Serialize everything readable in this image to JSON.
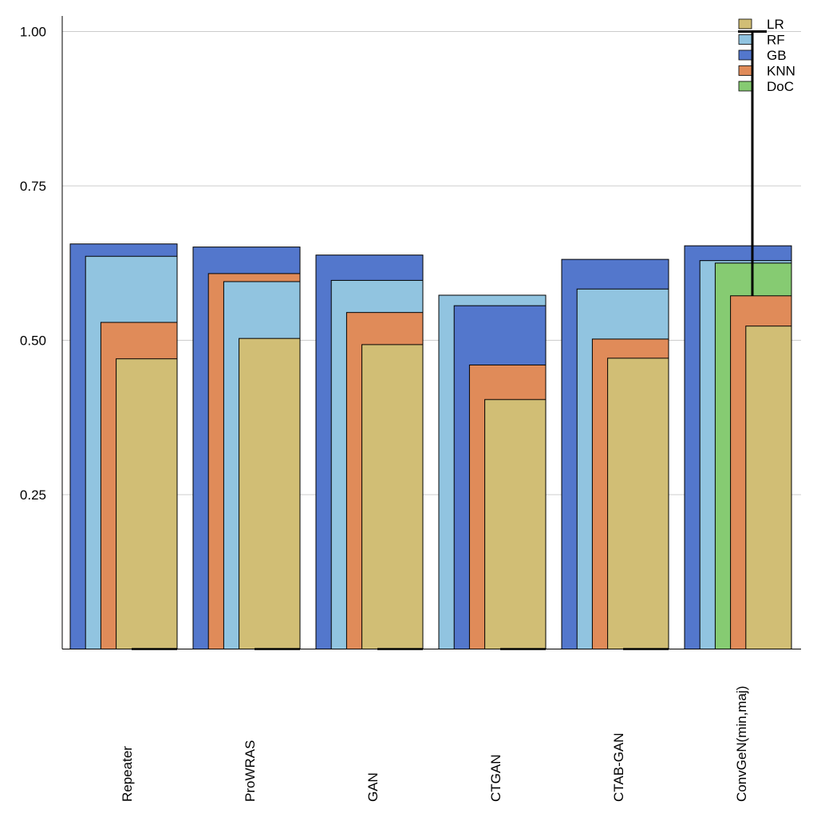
{
  "chart_data": {
    "type": "bar",
    "title": "",
    "xlabel": "",
    "ylabel": "",
    "ylim": [
      0,
      1.03
    ],
    "yticks": [
      0.25,
      0.5,
      0.75,
      1.0
    ],
    "ytick_labels": [
      "0.25",
      "0.50",
      "0.75",
      "1.00"
    ],
    "grid": "horizontal",
    "legend_placement": "top-right",
    "categories": [
      "Repeater",
      "ProWRAS",
      "GAN",
      "CTGAN",
      "CTAB-GAN",
      "ConvGeN(min,maj)"
    ],
    "series": [
      {
        "name": "LR",
        "color": "#d1be75",
        "values": [
          0.47,
          0.503,
          0.493,
          0.404,
          0.471,
          0.523
        ]
      },
      {
        "name": "RF",
        "color": "#91c4e0",
        "values": [
          0.636,
          0.595,
          0.597,
          0.573,
          0.583,
          0.629
        ]
      },
      {
        "name": "GB",
        "color": "#5377cc",
        "values": [
          0.656,
          0.651,
          0.638,
          0.556,
          0.631,
          0.653
        ]
      },
      {
        "name": "KNN",
        "color": "#e08b59",
        "values": [
          0.529,
          0.608,
          0.545,
          0.46,
          0.502,
          0.572
        ]
      },
      {
        "name": "DoC",
        "color": "#86cb72",
        "values": [
          null,
          null,
          null,
          null,
          null,
          0.625
        ]
      }
    ],
    "error_bars": {
      "DoC": [
        null,
        null,
        null,
        null,
        null,
        [
          0.12,
          1.0
        ]
      ]
    }
  }
}
